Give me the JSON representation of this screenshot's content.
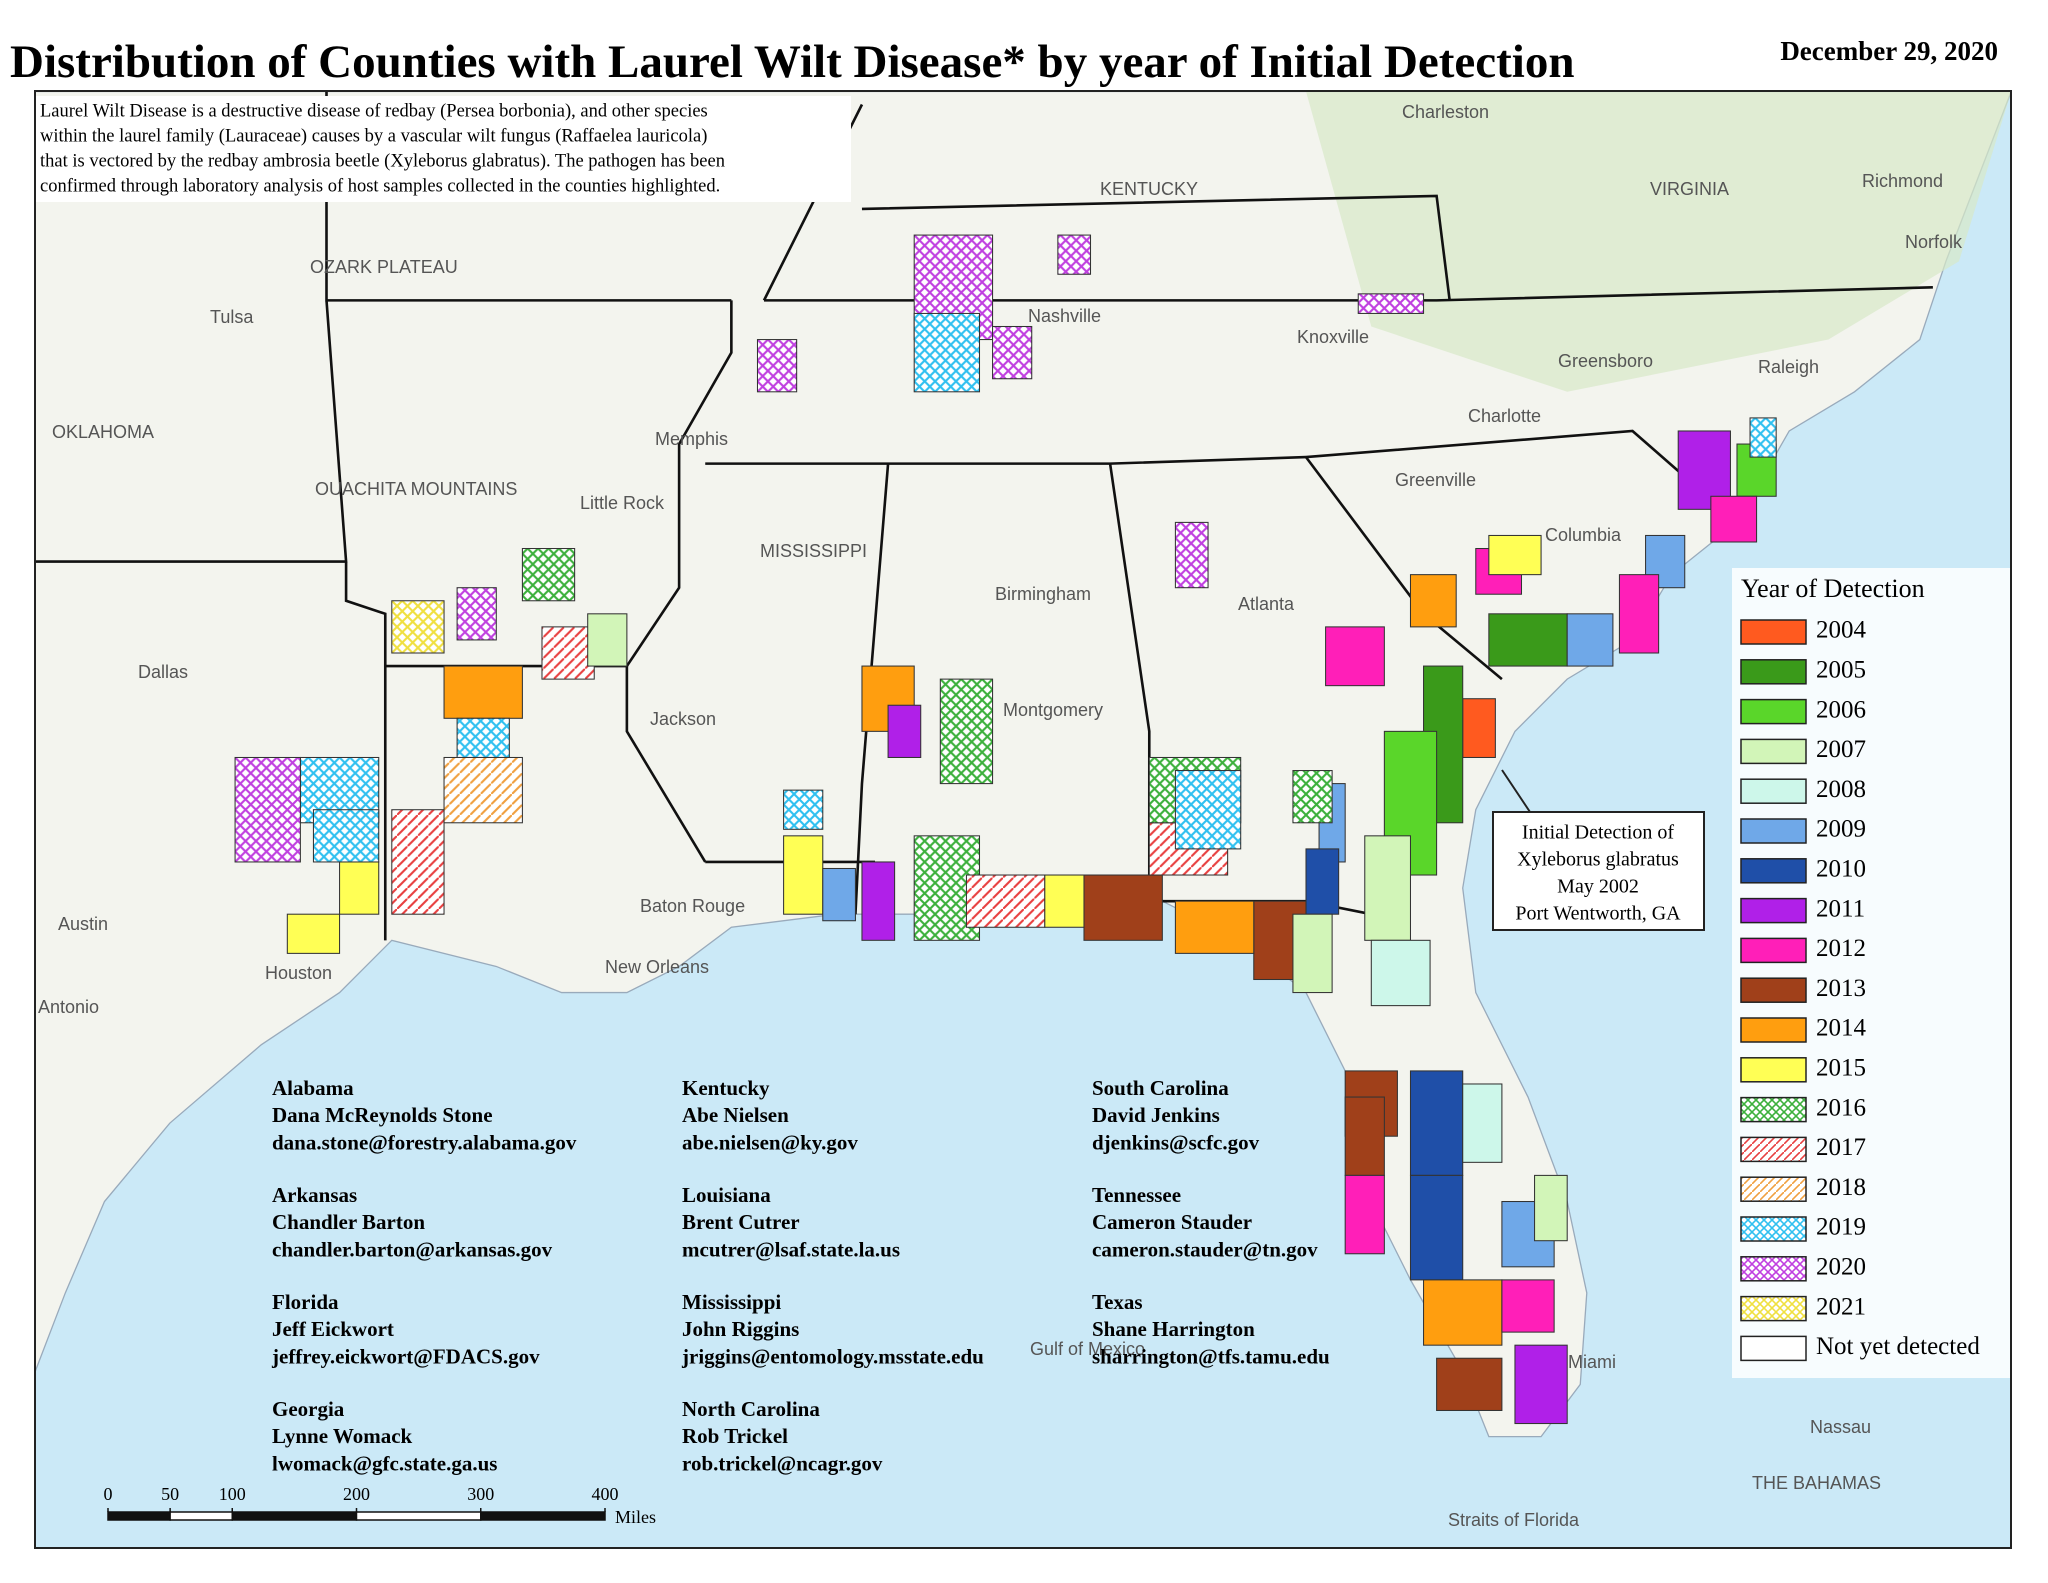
{
  "title": "Distribution of Counties with Laurel Wilt Disease* by year of Initial Detection",
  "date": "December 29, 2020",
  "description": [
    "Laurel Wilt Disease is a destructive disease of redbay (Persea borbonia), and other species",
    "within the laurel family (Lauraceae) causes by a vascular wilt fungus (Raffaelea lauricola)",
    "that is vectored by the redbay ambrosia beetle (Xyleborus glabratus). The pathogen has been",
    "confirmed through laboratory analysis of host samples collected in the counties highlighted."
  ],
  "legend": {
    "title": "Year of Detection",
    "items": [
      {
        "label": "2004",
        "color": "#ff5a1f",
        "pattern": "solid"
      },
      {
        "label": "2005",
        "color": "#3a9a1a",
        "pattern": "solid"
      },
      {
        "label": "2006",
        "color": "#5ad62a",
        "pattern": "solid"
      },
      {
        "label": "2007",
        "color": "#d2f5b8",
        "pattern": "solid"
      },
      {
        "label": "2008",
        "color": "#cdf7ea",
        "pattern": "solid"
      },
      {
        "label": "2009",
        "color": "#6fa8e8",
        "pattern": "solid"
      },
      {
        "label": "2010",
        "color": "#1f4fa8",
        "pattern": "solid"
      },
      {
        "label": "2011",
        "color": "#b020e8",
        "pattern": "solid"
      },
      {
        "label": "2012",
        "color": "#ff1fb8",
        "pattern": "solid"
      },
      {
        "label": "2013",
        "color": "#a0401a",
        "pattern": "solid"
      },
      {
        "label": "2014",
        "color": "#ff9e0f",
        "pattern": "solid"
      },
      {
        "label": "2015",
        "color": "#ffff55",
        "pattern": "solid"
      },
      {
        "label": "2016",
        "color": "#3cb03c",
        "pattern": "cross"
      },
      {
        "label": "2017",
        "color": "#e84040",
        "pattern": "diagonal"
      },
      {
        "label": "2018",
        "color": "#f0a040",
        "pattern": "diagonal"
      },
      {
        "label": "2019",
        "color": "#30c0f0",
        "pattern": "cross"
      },
      {
        "label": "2020",
        "color": "#c040e0",
        "pattern": "cross"
      },
      {
        "label": "2021",
        "color": "#f0e040",
        "pattern": "cross"
      },
      {
        "label": "Not yet detected",
        "color": "#ffffff",
        "pattern": "solid"
      }
    ]
  },
  "callout": [
    "Initial Detection of",
    "Xyleborus glabratus",
    "May 2002",
    "Port Wentworth, GA"
  ],
  "contacts": [
    {
      "state": "Alabama",
      "name": "Dana McReynolds Stone",
      "email": "dana.stone@forestry.alabama.gov"
    },
    {
      "state": "Arkansas",
      "name": "Chandler Barton",
      "email": "chandler.barton@arkansas.gov"
    },
    {
      "state": "Florida",
      "name": "Jeff Eickwort",
      "email": "jeffrey.eickwort@FDACS.gov"
    },
    {
      "state": "Georgia",
      "name": "Lynne Womack",
      "email": "lwomack@gfc.state.ga.us"
    },
    {
      "state": "Kentucky",
      "name": "Abe Nielsen",
      "email": "abe.nielsen@ky.gov"
    },
    {
      "state": "Louisiana",
      "name": "Brent Cutrer",
      "email": "mcutrer@lsaf.state.la.us"
    },
    {
      "state": "Mississippi",
      "name": "John Riggins",
      "email": "jriggins@entomology.msstate.edu"
    },
    {
      "state": "North Carolina",
      "name": "Rob Trickel",
      "email": "rob.trickel@ncagr.gov"
    },
    {
      "state": "South Carolina",
      "name": "David Jenkins",
      "email": "djenkins@scfc.gov"
    },
    {
      "state": "Tennessee",
      "name": "Cameron Stauder",
      "email": "cameron.stauder@tn.gov"
    },
    {
      "state": "Texas",
      "name": "Shane Harrington",
      "email": "sharrington@tfs.tamu.edu"
    }
  ],
  "scale_bar": {
    "ticks": [
      0,
      50,
      100,
      200,
      300,
      400
    ],
    "unit": "Miles"
  },
  "places": [
    "Tulsa",
    "OKLAHOMA",
    "OZARK PLATEAU",
    "OUACHITA MOUNTAINS",
    "Dallas",
    "Austin",
    "Houston",
    "Antonio",
    "Memphis",
    "Little Rock",
    "Jackson",
    "Baton Rouge",
    "New Orleans",
    "Birmingham",
    "Montgomery",
    "Atlanta",
    "Nashville",
    "Knoxville",
    "Charleston",
    "Richmond",
    "Norfolk",
    "Greensboro",
    "Raleigh",
    "Charlotte",
    "Greenville",
    "Columbia",
    "VIRGINIA",
    "KENTUCKY",
    "MISSISSIPPI",
    "Miami",
    "Nassau",
    "THE BAHAMAS",
    "Gulf of Mexico",
    "Straits of Florida"
  ]
}
